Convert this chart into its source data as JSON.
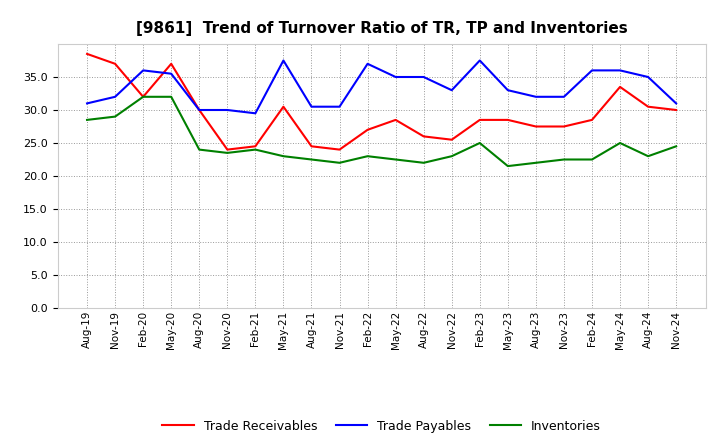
{
  "title": "[9861]  Trend of Turnover Ratio of TR, TP and Inventories",
  "x_labels": [
    "Aug-19",
    "Nov-19",
    "Feb-20",
    "May-20",
    "Aug-20",
    "Nov-20",
    "Feb-21",
    "May-21",
    "Aug-21",
    "Nov-21",
    "Feb-22",
    "May-22",
    "Aug-22",
    "Nov-22",
    "Feb-23",
    "May-23",
    "Aug-23",
    "Nov-23",
    "Feb-24",
    "May-24",
    "Aug-24",
    "Nov-24"
  ],
  "trade_receivables": [
    38.5,
    37.0,
    32.0,
    37.0,
    30.0,
    24.0,
    24.5,
    30.5,
    24.5,
    24.0,
    27.0,
    28.5,
    26.0,
    25.5,
    28.5,
    28.5,
    27.5,
    27.5,
    28.5,
    33.5,
    30.5,
    30.0
  ],
  "trade_payables": [
    31.0,
    32.0,
    36.0,
    35.5,
    30.0,
    30.0,
    29.5,
    37.5,
    30.5,
    30.5,
    37.0,
    35.0,
    35.0,
    33.0,
    37.5,
    33.0,
    32.0,
    32.0,
    36.0,
    36.0,
    35.0,
    31.0
  ],
  "inventories": [
    28.5,
    29.0,
    32.0,
    32.0,
    24.0,
    23.5,
    24.0,
    23.0,
    22.5,
    22.0,
    23.0,
    22.5,
    22.0,
    23.0,
    25.0,
    21.5,
    22.0,
    22.5,
    22.5,
    25.0,
    23.0,
    24.5
  ],
  "tr_color": "#FF0000",
  "tp_color": "#0000FF",
  "inv_color": "#008000",
  "ylim": [
    0,
    40
  ],
  "yticks": [
    0.0,
    5.0,
    10.0,
    15.0,
    20.0,
    25.0,
    30.0,
    35.0
  ],
  "background_color": "#FFFFFF",
  "grid_color": "#AAAAAA",
  "title_fontsize": 11
}
